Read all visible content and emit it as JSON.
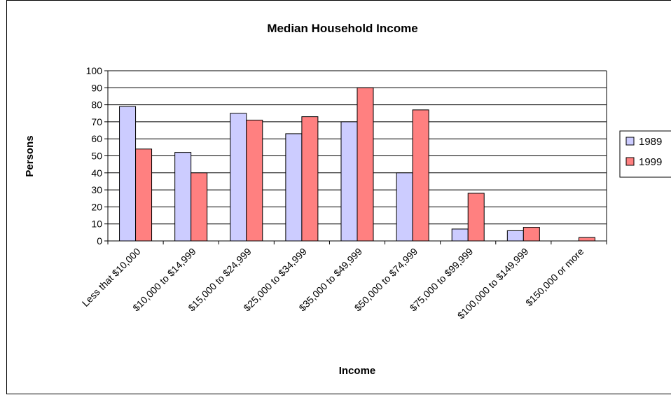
{
  "chart_data": {
    "type": "bar",
    "title": "Median Household Income",
    "xlabel": "Income",
    "ylabel": "Persons",
    "ylim": [
      0,
      100
    ],
    "yticks": [
      "0",
      "10",
      "20",
      "30",
      "40",
      "50",
      "60",
      "70",
      "80",
      "90",
      "100"
    ],
    "categories": [
      "Less that $10,000",
      "$10,000 to $14,999",
      "$15,000 to $24,999",
      "$25,000 to $34,999",
      "$35,000 to $49,999",
      "$50,000 to $74,999",
      "$75,000 to $99,999",
      "$100,000 to $149,999",
      "$150,000 or more"
    ],
    "series": [
      {
        "name": "1989",
        "color": "#ccccff",
        "values": [
          79,
          52,
          75,
          63,
          70,
          40,
          7,
          6,
          0
        ]
      },
      {
        "name": "1999",
        "color": "#ff8080",
        "values": [
          54,
          40,
          71,
          73,
          90,
          77,
          28,
          8,
          2
        ]
      }
    ],
    "grid": true,
    "legend": "right"
  }
}
